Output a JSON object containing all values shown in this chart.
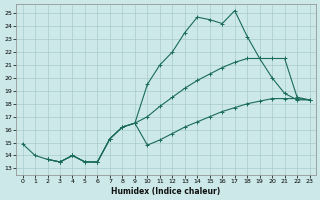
{
  "xlabel": "Humidex (Indice chaleur)",
  "bg_color": "#cce8e8",
  "grid_color": "#aacccc",
  "line_color": "#1a6b5a",
  "xlim": [
    -0.5,
    23.5
  ],
  "ylim": [
    12.5,
    25.7
  ],
  "xticks": [
    0,
    1,
    2,
    3,
    4,
    5,
    6,
    7,
    8,
    9,
    10,
    11,
    12,
    13,
    14,
    15,
    16,
    17,
    18,
    19,
    20,
    21,
    22,
    23
  ],
  "yticks": [
    13,
    14,
    15,
    16,
    17,
    18,
    19,
    20,
    21,
    22,
    23,
    24,
    25
  ],
  "line1": {
    "x": [
      0,
      1,
      2,
      3,
      4,
      5,
      6,
      7,
      8,
      9,
      10,
      11,
      12,
      13,
      14,
      15,
      16,
      17,
      18,
      19,
      20,
      21,
      22,
      23
    ],
    "y": [
      14.9,
      14.0,
      13.7,
      13.5,
      14.0,
      13.5,
      13.5,
      15.3,
      16.2,
      16.5,
      19.5,
      21.0,
      22.0,
      23.5,
      24.7,
      24.5,
      24.2,
      25.2,
      23.2,
      21.5,
      20.0,
      18.8,
      18.3,
      18.3
    ]
  },
  "line2": {
    "x": [
      2,
      3,
      4,
      5,
      6,
      7,
      8,
      9,
      10,
      11,
      12,
      13,
      14,
      15,
      16,
      17,
      18,
      19,
      20,
      21,
      22,
      23
    ],
    "y": [
      13.7,
      13.5,
      14.0,
      13.5,
      13.5,
      15.3,
      16.2,
      16.5,
      17.0,
      17.8,
      18.5,
      19.2,
      19.8,
      20.3,
      20.8,
      21.2,
      21.5,
      21.5,
      21.5,
      21.5,
      18.5,
      18.3
    ]
  },
  "line3": {
    "x": [
      2,
      3,
      4,
      5,
      6,
      7,
      8,
      9,
      10,
      11,
      12,
      13,
      14,
      15,
      16,
      17,
      18,
      19,
      20,
      21,
      22,
      23
    ],
    "y": [
      13.7,
      13.5,
      14.0,
      13.5,
      13.5,
      15.3,
      16.2,
      16.5,
      14.8,
      15.2,
      15.7,
      16.2,
      16.6,
      17.0,
      17.4,
      17.7,
      18.0,
      18.2,
      18.4,
      18.4,
      18.4,
      18.3
    ]
  }
}
